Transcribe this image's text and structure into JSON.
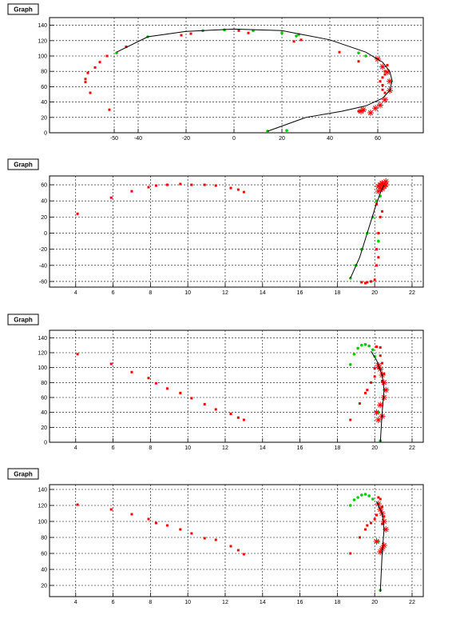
{
  "chart_data": [
    {
      "type": "scatter",
      "title": "Graph",
      "xlim": [
        -77,
        79
      ],
      "ylim": [
        0,
        150
      ],
      "xticks": [
        -50,
        -40,
        -20,
        0,
        20,
        40,
        60
      ],
      "yticks": [
        0,
        20,
        40,
        60,
        80,
        100,
        120,
        140
      ],
      "grid": true,
      "series": [
        {
          "marker": "square",
          "color": "#ff0000",
          "points": [
            [
              -62,
              66
            ],
            [
              -62,
              70
            ],
            [
              -61,
              78
            ],
            [
              -60,
              52
            ],
            [
              -58,
              85
            ],
            [
              -56,
              92
            ],
            [
              -53,
              100
            ],
            [
              -52,
              30
            ],
            [
              -45,
              112
            ],
            [
              -22,
              127
            ],
            [
              -18,
              129
            ],
            [
              2,
              133
            ],
            [
              6,
              130
            ],
            [
              20,
              130
            ],
            [
              25,
              119
            ],
            [
              28,
              121
            ],
            [
              44,
              105
            ],
            [
              52,
              93
            ],
            [
              52,
              28
            ],
            [
              61,
              67
            ],
            [
              62,
              72
            ],
            [
              62,
              62
            ],
            [
              62,
              56
            ],
            [
              63,
              52
            ],
            [
              63,
              76
            ],
            [
              63,
              80
            ],
            [
              64,
              88
            ]
          ]
        },
        {
          "marker": "circle",
          "color": "#00cc00",
          "points": [
            [
              -49,
              104
            ],
            [
              -36,
              125
            ],
            [
              -13,
              133
            ],
            [
              -4,
              134
            ],
            [
              8,
              133
            ],
            [
              20,
              130
            ],
            [
              26,
              126
            ],
            [
              27,
              128
            ],
            [
              52,
              104
            ],
            [
              55,
              100
            ],
            [
              14,
              2
            ],
            [
              22,
              3
            ]
          ]
        },
        {
          "marker": "star",
          "color": "#ff0000",
          "points": [
            [
              57,
              26
            ],
            [
              59,
              32
            ],
            [
              61,
              36
            ],
            [
              63,
              43
            ],
            [
              65,
              55
            ],
            [
              65,
              67
            ],
            [
              64,
              79
            ],
            [
              62,
              86
            ],
            [
              60,
              96
            ],
            [
              53,
              28
            ],
            [
              54,
              30
            ]
          ]
        },
        {
          "marker": "line",
          "color": "#000000",
          "points": [
            [
              -49,
              105
            ],
            [
              -36,
              125
            ],
            [
              -20,
              132
            ],
            [
              0,
              135
            ],
            [
              20,
              133
            ],
            [
              40,
              121
            ],
            [
              55,
              105
            ],
            [
              62,
              92
            ],
            [
              65,
              80
            ],
            [
              66,
              68
            ],
            [
              65,
              55
            ],
            [
              62,
              45
            ],
            [
              55,
              35
            ],
            [
              45,
              28
            ],
            [
              30,
              20
            ],
            [
              14,
              2
            ]
          ]
        }
      ]
    },
    {
      "type": "scatter",
      "title": "Graph",
      "xlim": [
        2.6,
        22.6
      ],
      "ylim": [
        -67,
        71
      ],
      "xticks": [
        4,
        6,
        8,
        10,
        12,
        14,
        16,
        18,
        20,
        22
      ],
      "yticks": [
        -60,
        -40,
        -20,
        0,
        20,
        40,
        60
      ],
      "grid": true,
      "series": [
        {
          "marker": "square",
          "color": "#ff0000",
          "points": [
            [
              4.1,
              24
            ],
            [
              5.9,
              44
            ],
            [
              7,
              52
            ],
            [
              7.9,
              57
            ],
            [
              8.3,
              59
            ],
            [
              8.9,
              60
            ],
            [
              9.6,
              61
            ],
            [
              10.2,
              60
            ],
            [
              10.9,
              60
            ],
            [
              11.5,
              59
            ],
            [
              12.3,
              56
            ],
            [
              12.7,
              54
            ],
            [
              13,
              51
            ],
            [
              19.3,
              -61
            ],
            [
              19.5,
              -62
            ],
            [
              19.6,
              -61
            ],
            [
              19.8,
              -60
            ],
            [
              20,
              -58
            ],
            [
              20.1,
              -40
            ],
            [
              20.2,
              -30
            ],
            [
              20.1,
              -20
            ],
            [
              20.2,
              0
            ],
            [
              20.3,
              20
            ],
            [
              20.4,
              27
            ],
            [
              20.1,
              36
            ],
            [
              20.3,
              56
            ]
          ]
        },
        {
          "marker": "circle",
          "color": "#00cc00",
          "points": [
            [
              18.7,
              -56
            ],
            [
              19,
              -40
            ],
            [
              19.3,
              -20
            ],
            [
              19.6,
              0
            ],
            [
              19.9,
              20
            ],
            [
              20.1,
              40
            ],
            [
              20.3,
              46
            ],
            [
              20.2,
              -10
            ]
          ]
        },
        {
          "marker": "star",
          "color": "#ff0000",
          "points": [
            [
              20.2,
              58
            ],
            [
              20.3,
              60
            ],
            [
              20.4,
              62
            ],
            [
              20.5,
              58
            ],
            [
              20.6,
              64
            ],
            [
              20.4,
              55
            ],
            [
              20.2,
              52
            ],
            [
              20.6,
              60
            ],
            [
              20.5,
              61
            ]
          ]
        },
        {
          "marker": "line",
          "color": "#000000",
          "points": [
            [
              18.7,
              -56
            ],
            [
              19.2,
              -30
            ],
            [
              19.6,
              0
            ],
            [
              20,
              30
            ],
            [
              20.3,
              50
            ],
            [
              20.5,
              60
            ]
          ]
        }
      ]
    },
    {
      "type": "scatter",
      "title": "Graph",
      "xlim": [
        2.6,
        22.6
      ],
      "ylim": [
        0,
        150
      ],
      "xticks": [
        4,
        6,
        8,
        10,
        12,
        14,
        16,
        18,
        20,
        22
      ],
      "yticks": [
        0,
        20,
        40,
        60,
        80,
        100,
        120,
        140
      ],
      "grid": true,
      "series": [
        {
          "marker": "square",
          "color": "#ff0000",
          "points": [
            [
              4.1,
              118
            ],
            [
              5.9,
              105
            ],
            [
              7,
              94
            ],
            [
              7.9,
              86
            ],
            [
              8.3,
              79
            ],
            [
              8.9,
              72
            ],
            [
              9.6,
              66
            ],
            [
              10.2,
              59
            ],
            [
              10.9,
              51
            ],
            [
              11.5,
              44
            ],
            [
              12.3,
              38
            ],
            [
              12.7,
              33
            ],
            [
              13,
              30
            ],
            [
              18.7,
              30
            ],
            [
              19.2,
              52
            ],
            [
              19.5,
              66
            ],
            [
              19.6,
              70
            ],
            [
              19.8,
              80
            ],
            [
              20,
              88
            ],
            [
              20,
              99
            ],
            [
              20.2,
              100
            ],
            [
              20.1,
              128
            ],
            [
              20.3,
              127
            ],
            [
              20.3,
              116
            ],
            [
              20.4,
              106
            ],
            [
              20.5,
              92
            ],
            [
              20.4,
              82
            ]
          ]
        },
        {
          "marker": "circle",
          "color": "#00cc00",
          "points": [
            [
              18.7,
              104
            ],
            [
              18.9,
              118
            ],
            [
              19.1,
              126
            ],
            [
              19.3,
              130
            ],
            [
              19.5,
              131
            ],
            [
              19.7,
              129
            ],
            [
              19.9,
              124
            ],
            [
              20,
              115
            ],
            [
              20.3,
              2
            ],
            [
              20.2,
              40
            ]
          ]
        },
        {
          "marker": "star",
          "color": "#ff0000",
          "points": [
            [
              20.1,
              40
            ],
            [
              20.3,
              50
            ],
            [
              20.2,
              30
            ],
            [
              20.4,
              35
            ],
            [
              20.5,
              60
            ],
            [
              20.6,
              70
            ],
            [
              20.5,
              80
            ],
            [
              20.4,
              90
            ],
            [
              20.3,
              98
            ],
            [
              20.2,
              103
            ]
          ]
        },
        {
          "marker": "line",
          "color": "#000000",
          "points": [
            [
              20.3,
              0
            ],
            [
              20.4,
              40
            ],
            [
              20.5,
              70
            ],
            [
              20.4,
              90
            ],
            [
              20.1,
              110
            ],
            [
              19.8,
              122
            ]
          ]
        }
      ]
    },
    {
      "type": "scatter",
      "title": "Graph",
      "xlim": [
        2.6,
        22.6
      ],
      "ylim": [
        6,
        146
      ],
      "xticks": [
        4,
        6,
        8,
        10,
        12,
        14,
        16,
        18,
        20,
        22
      ],
      "yticks": [
        20,
        40,
        60,
        80,
        100,
        120,
        140
      ],
      "grid": true,
      "series": [
        {
          "marker": "square",
          "color": "#ff0000",
          "points": [
            [
              4.1,
              121
            ],
            [
              5.9,
              115
            ],
            [
              7,
              109
            ],
            [
              7.9,
              103
            ],
            [
              8.3,
              98
            ],
            [
              8.9,
              95
            ],
            [
              9.6,
              90
            ],
            [
              10.2,
              85
            ],
            [
              10.9,
              79
            ],
            [
              11.5,
              77
            ],
            [
              12.3,
              69
            ],
            [
              12.7,
              64
            ],
            [
              13,
              59
            ],
            [
              18.7,
              60
            ],
            [
              19.2,
              80
            ],
            [
              19.5,
              90
            ],
            [
              19.6,
              95
            ],
            [
              19.8,
              98
            ],
            [
              20,
              103
            ],
            [
              20.1,
              108
            ],
            [
              20.2,
              130
            ],
            [
              20.3,
              128
            ],
            [
              20.4,
              118
            ],
            [
              20.5,
              106
            ],
            [
              20.4,
              97
            ]
          ]
        },
        {
          "marker": "circle",
          "color": "#00cc00",
          "points": [
            [
              18.7,
              120
            ],
            [
              18.9,
              127
            ],
            [
              19.1,
              130
            ],
            [
              19.3,
              133
            ],
            [
              19.5,
              134
            ],
            [
              19.7,
              132
            ],
            [
              19.9,
              128
            ],
            [
              20.3,
              14
            ],
            [
              20.2,
              75
            ]
          ]
        },
        {
          "marker": "star",
          "color": "#ff0000",
          "points": [
            [
              20.1,
              75
            ],
            [
              20.3,
              62
            ],
            [
              20.4,
              66
            ],
            [
              20.5,
              70
            ],
            [
              20.6,
              90
            ],
            [
              20.5,
              100
            ],
            [
              20.4,
              110
            ],
            [
              20.3,
              115
            ],
            [
              20.2,
              122
            ]
          ]
        },
        {
          "marker": "line",
          "color": "#000000",
          "points": [
            [
              20.3,
              12
            ],
            [
              20.4,
              60
            ],
            [
              20.5,
              90
            ],
            [
              20.4,
              110
            ],
            [
              20.1,
              125
            ]
          ]
        }
      ]
    }
  ]
}
